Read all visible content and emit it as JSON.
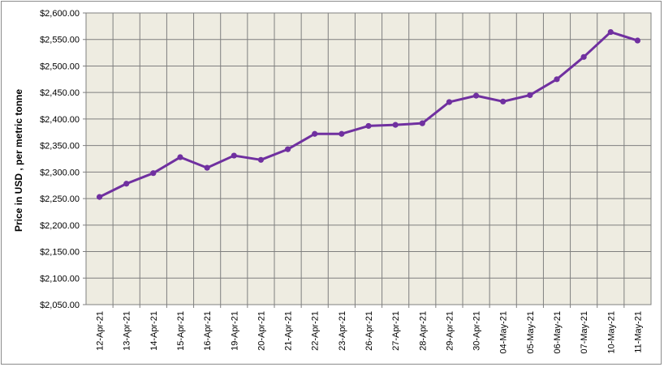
{
  "chart_data": {
    "type": "line",
    "title": "",
    "xlabel": "",
    "ylabel": "Price in USD , per metric tonne",
    "categories": [
      "12-Apr-21",
      "13-Apr-21",
      "14-Apr-21",
      "15-Apr-21",
      "16-Apr-21",
      "19-Apr-21",
      "20-Apr-21",
      "21-Apr-21",
      "22-Apr-21",
      "23-Apr-21",
      "26-Apr-21",
      "27-Apr-21",
      "28-Apr-21",
      "29-Apr-21",
      "30-Apr-21",
      "04-May-21",
      "05-May-21",
      "06-May-21",
      "07-May-21",
      "10-May-21",
      "11-May-21"
    ],
    "series": [
      {
        "values": [
          2253,
          2278,
          2298,
          2328,
          2308,
          2331,
          2323,
          2343,
          2372,
          2372,
          2387,
          2389,
          2392,
          2432,
          2444,
          2433,
          2445,
          2475,
          2517,
          2564,
          2548
        ]
      }
    ],
    "ylim": [
      2050,
      2600
    ],
    "ytick_step": 50,
    "yticks": [
      "$2,050.00",
      "$2,100.00",
      "$2,150.00",
      "$2,200.00",
      "$2,250.00",
      "$2,300.00",
      "$2,350.00",
      "$2,400.00",
      "$2,450.00",
      "$2,500.00",
      "$2,550.00",
      "$2,600.00"
    ],
    "grid": true,
    "legend": "none",
    "colors": {
      "plot_background": "#eeece1",
      "grid": "#7f7f7f",
      "line": "#7030a0",
      "marker": "#7030a0"
    }
  }
}
